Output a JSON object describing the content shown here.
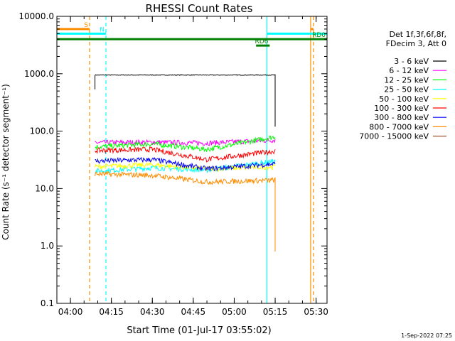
{
  "chart_data": {
    "type": "line",
    "title": "RHESSI Count Rates",
    "xlabel": "Start Time (01-Jul-17 03:55:02)",
    "ylabel": "Count Rate (s⁻¹ detector segment⁻¹)",
    "x_range": [
      "03:55:02",
      "05:34:00"
    ],
    "x_ticks": [
      "04:00",
      "04:15",
      "04:30",
      "04:45",
      "05:00",
      "05:15",
      "05:30"
    ],
    "y_scale": "log",
    "ylim": [
      0.1,
      10000.0
    ],
    "y_ticks": [
      "0.1",
      "1.0",
      "10.0",
      "100.0",
      "1000.0",
      "10000.0"
    ],
    "grid": false,
    "legend_position": "right",
    "legend_header": [
      "Det 1f,3f,6f,8f,",
      "FDecim 3, Att 0"
    ],
    "series": [
      {
        "name": "3 - 6 keV",
        "color": "#000000",
        "values": [
          [
            "04:09",
            950
          ],
          [
            "05:15",
            950
          ]
        ],
        "end_drop_to": 120
      },
      {
        "name": "6 - 12 keV",
        "color": "#ff00ff",
        "values": [
          [
            "04:09",
            63
          ],
          [
            "04:30",
            64
          ],
          [
            "04:50",
            62
          ],
          [
            "05:15",
            70
          ]
        ]
      },
      {
        "name": "12 - 25 keV",
        "color": "#00ff00",
        "values": [
          [
            "04:09",
            53
          ],
          [
            "04:30",
            60
          ],
          [
            "04:50",
            48
          ],
          [
            "05:15",
            80
          ]
        ]
      },
      {
        "name": "25 - 50 keV",
        "color": "#00ffff",
        "values": [
          [
            "04:09",
            20
          ],
          [
            "04:30",
            23
          ],
          [
            "04:50",
            21
          ],
          [
            "05:15",
            30
          ]
        ]
      },
      {
        "name": "50 - 100 keV",
        "color": "#ffff00",
        "values": [
          [
            "04:09",
            24
          ],
          [
            "04:30",
            26
          ],
          [
            "04:50",
            22
          ],
          [
            "05:15",
            24
          ]
        ]
      },
      {
        "name": "100 - 300 keV",
        "color": "#ff0000",
        "values": [
          [
            "04:09",
            46
          ],
          [
            "04:30",
            48
          ],
          [
            "04:50",
            32
          ],
          [
            "05:15",
            45
          ]
        ]
      },
      {
        "name": "300 - 800 keV",
        "color": "#0000ff",
        "values": [
          [
            "04:09",
            30
          ],
          [
            "04:30",
            32
          ],
          [
            "04:50",
            22
          ],
          [
            "05:15",
            27
          ]
        ]
      },
      {
        "name": "800 - 7000 keV",
        "color": "#ff8c00",
        "values": [
          [
            "04:09",
            18
          ],
          [
            "04:30",
            17
          ],
          [
            "04:50",
            13
          ],
          [
            "05:15",
            14
          ]
        ],
        "end_drop_to": 0.8
      },
      {
        "name": "7000 - 15000 keV",
        "color": "#a0522d",
        "values": []
      }
    ],
    "annotations": {
      "flag_bars": [
        {
          "label": "S",
          "color": "#ff8c00",
          "x_start": "03:55:02",
          "x_end": "04:07",
          "y": 6000,
          "level": 1
        },
        {
          "label": "S",
          "color": "#ff8c00",
          "x_start": "05:28",
          "x_end": "05:29",
          "y": 6000,
          "level": 1
        },
        {
          "label": "N",
          "color": "#00ffff",
          "x_start": "03:55:02",
          "x_end": "04:13",
          "y": 5000,
          "level": 2
        },
        {
          "label": "N",
          "color": "#00ffff",
          "x_start": "05:12",
          "x_end": "05:34",
          "y": 5000,
          "level": 2
        },
        {
          "label": "RD0",
          "color": "#008000",
          "x_start": "03:55:02",
          "x_end": "05:34",
          "y": 4000,
          "level": 3
        },
        {
          "label": "RD6",
          "color": "#008000",
          "x_start": "05:08",
          "x_end": "05:13",
          "y": 3100,
          "level": 4
        }
      ],
      "vlines": [
        {
          "x": "04:07",
          "color": "#ff8c00",
          "style": "dashed"
        },
        {
          "x": "04:13",
          "color": "#00ffff",
          "style": "dashed"
        },
        {
          "x": "05:12",
          "color": "#00ffff",
          "style": "solid"
        },
        {
          "x": "05:28",
          "color": "#ff8c00",
          "style": "solid"
        },
        {
          "x": "05:29",
          "color": "#ff8c00",
          "style": "dashed"
        }
      ]
    }
  },
  "footer": {
    "timestamp": "1-Sep-2022 07:25"
  }
}
